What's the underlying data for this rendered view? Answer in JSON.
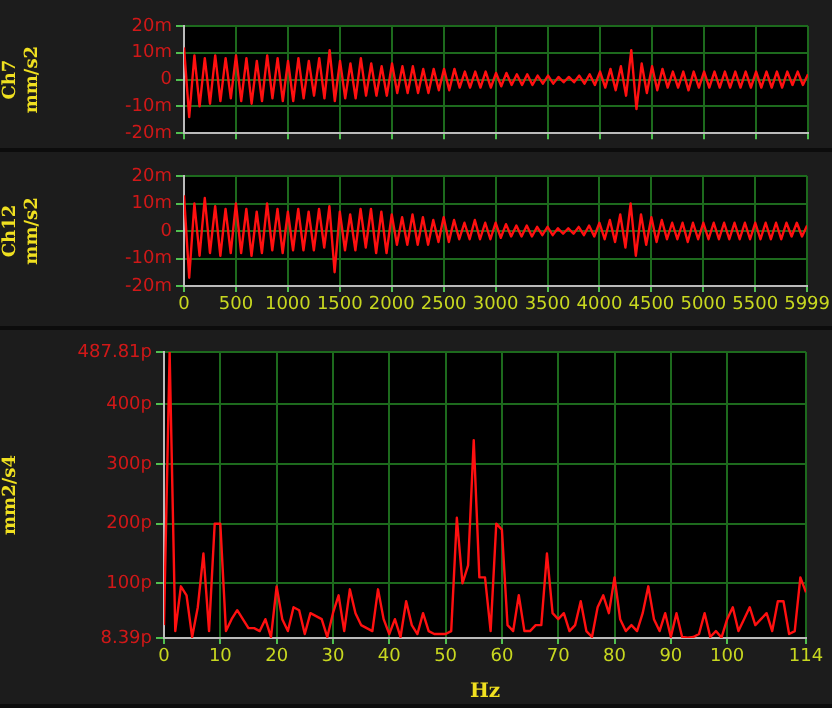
{
  "chart_data": [
    {
      "type": "line",
      "ylabel": "Ch7 mm/s2",
      "xlim": [
        0,
        5999
      ],
      "xticks": [
        0,
        500,
        1000,
        1500,
        2000,
        2500,
        3000,
        3500,
        4000,
        4500,
        5000,
        5500,
        5999
      ],
      "ylim": [
        -20,
        20
      ],
      "yticks": [
        {
          "value": -20,
          "label": "-20m"
        },
        {
          "value": -10,
          "label": "-10m"
        },
        0,
        {
          "value": 10,
          "label": "10m"
        },
        {
          "value": 20,
          "label": "20m"
        }
      ],
      "grid": true,
      "legend": false,
      "marker": "none",
      "line_style": "solid",
      "tick_labels": "y",
      "x": [
        0,
        50,
        100,
        150,
        200,
        250,
        300,
        350,
        400,
        450,
        500,
        550,
        600,
        650,
        700,
        750,
        800,
        850,
        900,
        950,
        1000,
        1050,
        1100,
        1150,
        1200,
        1250,
        1300,
        1350,
        1400,
        1450,
        1500,
        1550,
        1600,
        1650,
        1700,
        1750,
        1800,
        1850,
        1900,
        1950,
        2000,
        2050,
        2100,
        2150,
        2200,
        2250,
        2300,
        2350,
        2400,
        2450,
        2500,
        2550,
        2600,
        2650,
        2700,
        2750,
        2800,
        2850,
        2900,
        2950,
        3000,
        3050,
        3100,
        3150,
        3200,
        3250,
        3300,
        3350,
        3400,
        3450,
        3500,
        3550,
        3600,
        3650,
        3700,
        3750,
        3800,
        3850,
        3900,
        3950,
        4000,
        4050,
        4100,
        4150,
        4200,
        4250,
        4300,
        4350,
        4400,
        4450,
        4500,
        4550,
        4600,
        4650,
        4700,
        4750,
        4800,
        4850,
        4900,
        4950,
        5000,
        5050,
        5100,
        5150,
        5200,
        5250,
        5300,
        5350,
        5400,
        5450,
        5500,
        5550,
        5600,
        5650,
        5700,
        5750,
        5800,
        5850,
        5900,
        5950,
        5999
      ],
      "series": [
        {
          "color": "#ff1010",
          "values": [
            12,
            -14,
            9,
            -10,
            8,
            -9,
            9,
            -8,
            8,
            -7,
            9,
            -8,
            8,
            -9,
            7,
            -8,
            9,
            -7,
            8,
            -8,
            7,
            -8,
            8,
            -7,
            7,
            -6,
            8,
            -7,
            11,
            -8,
            7,
            -7,
            6,
            -7,
            8,
            -6,
            6,
            -6,
            5,
            -6,
            6,
            -5,
            5,
            -5,
            5,
            -5,
            4,
            -5,
            4,
            -4,
            4,
            -4,
            4,
            -3,
            3,
            -3,
            3,
            -3,
            3,
            -3,
            2.5,
            -2.5,
            2.5,
            -2,
            2,
            -2,
            2,
            -2,
            1.5,
            -1.5,
            1.5,
            -1.5,
            1,
            -1,
            1,
            -1,
            1.5,
            -1.5,
            2,
            -2,
            3,
            -3,
            4,
            -4,
            5,
            -6,
            11,
            -11,
            6,
            -5,
            5,
            -4,
            4,
            -3,
            3,
            -3,
            3,
            -4,
            3,
            -3,
            3,
            -3,
            3,
            -3,
            3,
            -3,
            3,
            -3,
            3,
            -3,
            3,
            -3,
            3,
            -3,
            3,
            -3,
            3,
            -2,
            3,
            -2,
            2
          ]
        }
      ]
    },
    {
      "type": "line",
      "ylabel": "Ch12 mm/s2",
      "xlim": [
        0,
        5999
      ],
      "xticks": [
        0,
        500,
        1000,
        1500,
        2000,
        2500,
        3000,
        3500,
        4000,
        4500,
        5000,
        5500,
        5999
      ],
      "ylim": [
        -20,
        20
      ],
      "yticks": [
        {
          "value": -20,
          "label": "-20m"
        },
        {
          "value": -10,
          "label": "-10m"
        },
        0,
        {
          "value": 10,
          "label": "10m"
        },
        {
          "value": 20,
          "label": "20m"
        }
      ],
      "grid": true,
      "legend": false,
      "marker": "none",
      "line_style": "solid",
      "x": [
        0,
        50,
        100,
        150,
        200,
        250,
        300,
        350,
        400,
        450,
        500,
        550,
        600,
        650,
        700,
        750,
        800,
        850,
        900,
        950,
        1000,
        1050,
        1100,
        1150,
        1200,
        1250,
        1300,
        1350,
        1400,
        1450,
        1500,
        1550,
        1600,
        1650,
        1700,
        1750,
        1800,
        1850,
        1900,
        1950,
        2000,
        2050,
        2100,
        2150,
        2200,
        2250,
        2300,
        2350,
        2400,
        2450,
        2500,
        2550,
        2600,
        2650,
        2700,
        2750,
        2800,
        2850,
        2900,
        2950,
        3000,
        3050,
        3100,
        3150,
        3200,
        3250,
        3300,
        3350,
        3400,
        3450,
        3500,
        3550,
        3600,
        3650,
        3700,
        3750,
        3800,
        3850,
        3900,
        3950,
        4000,
        4050,
        4100,
        4150,
        4200,
        4250,
        4300,
        4350,
        4400,
        4450,
        4500,
        4550,
        4600,
        4650,
        4700,
        4750,
        4800,
        4850,
        4900,
        4950,
        5000,
        5050,
        5100,
        5150,
        5200,
        5250,
        5300,
        5350,
        5400,
        5450,
        5500,
        5550,
        5600,
        5650,
        5700,
        5750,
        5800,
        5850,
        5900,
        5950,
        5999
      ],
      "series": [
        {
          "color": "#ff1010",
          "values": [
            13,
            -17,
            10,
            -9,
            12,
            -8,
            9,
            -9,
            8,
            -8,
            10,
            -8,
            8,
            -9,
            7,
            -8,
            10,
            -7,
            8,
            -8,
            7,
            -7,
            8,
            -7,
            7,
            -7,
            8,
            -6,
            9,
            -15,
            7,
            -7,
            6,
            -7,
            8,
            -6,
            8,
            -8,
            7,
            -8,
            6,
            -5,
            5,
            -5,
            6,
            -5,
            5,
            -5,
            4,
            -4,
            5,
            -4,
            4,
            -3,
            3,
            -3,
            4,
            -3,
            3,
            -3,
            3,
            -2.5,
            2.5,
            -2,
            2,
            -2,
            2,
            -2,
            1.5,
            -1.5,
            1.5,
            -1.5,
            1,
            -1,
            1,
            -1,
            1.5,
            -1.5,
            2,
            -2,
            3,
            -3,
            4,
            -4,
            6,
            -6,
            10,
            -9,
            6,
            -5,
            5,
            -4,
            4,
            -3,
            3,
            -3,
            3,
            -4,
            3,
            -3,
            3,
            -3,
            3,
            -3,
            3,
            -3,
            3,
            -3,
            3,
            -3,
            3,
            -3,
            3,
            -3,
            3,
            -3,
            3,
            -2,
            3,
            -2,
            2
          ]
        }
      ]
    },
    {
      "type": "line",
      "xlabel": "Hz",
      "ylabel": "mm2/s4",
      "xlim": [
        0,
        114
      ],
      "xticks": [
        0,
        10,
        20,
        30,
        40,
        50,
        60,
        70,
        80,
        90,
        100,
        114
      ],
      "ylim": [
        8.39,
        487.81
      ],
      "yticks": [
        {
          "value": 8.39,
          "label": "8.39p"
        },
        {
          "value": 100,
          "label": "100p"
        },
        {
          "value": 200,
          "label": "200p"
        },
        {
          "value": 300,
          "label": "300p"
        },
        {
          "value": 400,
          "label": "400p"
        },
        {
          "value": 487.81,
          "label": "487.81p"
        }
      ],
      "grid": true,
      "legend": false,
      "marker": "none",
      "line_style": "solid",
      "x": [
        0,
        1,
        2,
        3,
        4,
        5,
        6,
        7,
        8,
        9,
        10,
        11,
        12,
        13,
        14,
        15,
        16,
        17,
        18,
        19,
        20,
        21,
        22,
        23,
        24,
        25,
        26,
        27,
        28,
        29,
        30,
        31,
        32,
        33,
        34,
        35,
        36,
        37,
        38,
        39,
        40,
        41,
        42,
        43,
        44,
        45,
        46,
        47,
        48,
        49,
        50,
        51,
        52,
        53,
        54,
        55,
        56,
        57,
        58,
        59,
        60,
        61,
        62,
        63,
        64,
        65,
        66,
        67,
        68,
        69,
        70,
        71,
        72,
        73,
        74,
        75,
        76,
        77,
        78,
        79,
        80,
        81,
        82,
        83,
        84,
        85,
        86,
        87,
        88,
        89,
        90,
        91,
        92,
        93,
        94,
        95,
        96,
        97,
        98,
        99,
        100,
        101,
        102,
        103,
        104,
        105,
        106,
        107,
        108,
        109,
        110,
        111,
        112,
        113,
        114
      ],
      "series": [
        {
          "color": "#ff1010",
          "values": [
            30,
            487,
            20,
            95,
            80,
            10,
            60,
            150,
            20,
            200,
            200,
            20,
            40,
            55,
            40,
            25,
            25,
            20,
            40,
            10,
            95,
            40,
            20,
            60,
            55,
            15,
            50,
            45,
            40,
            10,
            50,
            80,
            20,
            90,
            50,
            30,
            25,
            20,
            90,
            40,
            15,
            40,
            10,
            70,
            30,
            15,
            50,
            20,
            15,
            15,
            15,
            20,
            210,
            100,
            130,
            340,
            110,
            110,
            20,
            200,
            190,
            30,
            20,
            80,
            20,
            20,
            30,
            30,
            150,
            50,
            40,
            50,
            20,
            30,
            70,
            20,
            10,
            60,
            80,
            50,
            110,
            40,
            20,
            30,
            20,
            50,
            95,
            40,
            20,
            50,
            10,
            50,
            10,
            9,
            10,
            15,
            50,
            10,
            20,
            9,
            40,
            60,
            20,
            40,
            60,
            30,
            40,
            50,
            20,
            70,
            70,
            15,
            20,
            110,
            85
          ]
        }
      ]
    }
  ]
}
